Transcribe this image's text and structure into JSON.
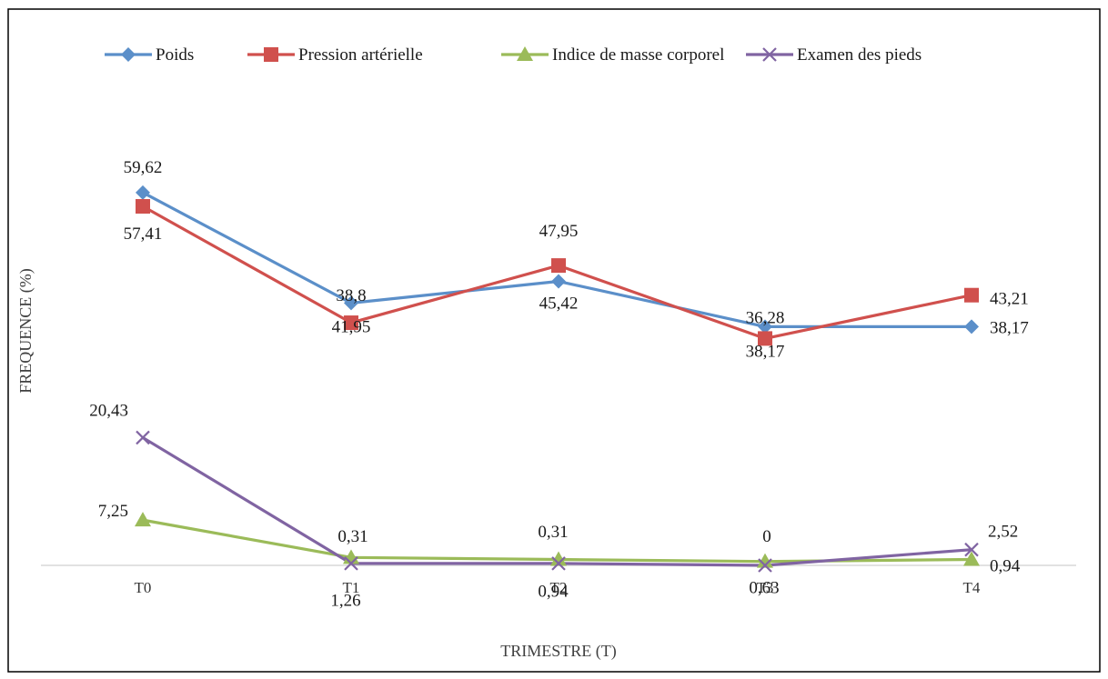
{
  "chart_data": {
    "type": "line",
    "xlabel": "TRIMESTRE (T)",
    "ylabel": "FREQUENCE (%)",
    "categories": [
      "T0",
      "T1",
      "T2",
      "T3",
      "T4"
    ],
    "ylim": [
      0,
      70
    ],
    "grid": false,
    "legend_position": "top",
    "series": [
      {
        "name": "Poids",
        "color": "#5B8FC9",
        "marker": "diamond",
        "values": [
          59.62,
          41.95,
          45.42,
          38.17,
          38.17
        ],
        "labels": [
          "59,62",
          "41,95",
          "45,42",
          "38,17",
          "38,17"
        ]
      },
      {
        "name": "Pression artérielle",
        "color": "#D0504D",
        "marker": "square",
        "values": [
          57.41,
          38.8,
          47.95,
          36.28,
          43.21
        ],
        "labels": [
          "57,41",
          "38,8",
          "47,95",
          "36,28",
          "43,21"
        ]
      },
      {
        "name": "Indice de masse corporel",
        "color": "#9BBB59",
        "marker": "triangle",
        "values": [
          7.25,
          1.26,
          0.94,
          0.63,
          0.94
        ],
        "labels": [
          "7,25",
          "1,26",
          "0,94",
          "0,63",
          "0,94"
        ]
      },
      {
        "name": "Examen des pieds",
        "color": "#8064A2",
        "marker": "x",
        "values": [
          20.43,
          0.31,
          0.31,
          0,
          2.52
        ],
        "labels": [
          "20,43",
          "0,31",
          "0,31",
          "0",
          "2,52"
        ]
      }
    ]
  }
}
